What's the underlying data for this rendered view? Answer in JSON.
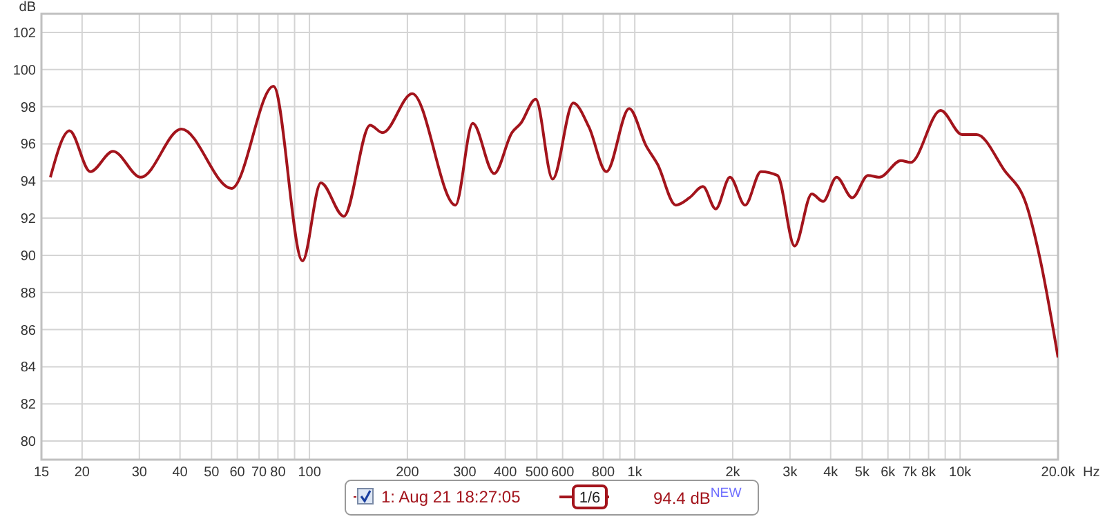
{
  "chart_data": {
    "type": "line",
    "xlabel": "Hz",
    "ylabel": "dB",
    "x": [
      15.98,
      18.3,
      21.2,
      24.9,
      30.3,
      40.4,
      57.6,
      77.5,
      95.2,
      108.4,
      127.5,
      153.6,
      167.8,
      207,
      281,
      317.6,
      369.5,
      419,
      446,
      496,
      559,
      647,
      723,
      818,
      961,
      1083,
      1175,
      1337,
      1473,
      1620,
      1773,
      1962,
      2183,
      2443,
      2744,
      3100,
      3500,
      3792,
      4171,
      4661,
      5211,
      5650,
      6573,
      7044,
      8713,
      10141,
      11240,
      13649,
      15998,
      17567,
      20000
    ],
    "series": [
      {
        "name": "1: Aug 21 18:27:05",
        "color": "#a3141c",
        "values": [
          94.2,
          96.7,
          94.5,
          95.6,
          94.2,
          96.8,
          93.6,
          99.1,
          89.7,
          93.9,
          92.1,
          97.0,
          96.6,
          98.7,
          92.7,
          97.1,
          94.4,
          96.6,
          97.1,
          98.4,
          94.1,
          98.2,
          96.9,
          94.5,
          97.9,
          95.9,
          94.9,
          92.7,
          93.1,
          93.7,
          92.5,
          94.2,
          92.7,
          94.5,
          94.3,
          90.5,
          93.3,
          92.9,
          94.2,
          93.1,
          94.3,
          94.2,
          95.1,
          95.0,
          97.8,
          96.5,
          96.5,
          94.6,
          92.7,
          89.9,
          84.5
        ]
      }
    ],
    "xlim": [
      15,
      20000
    ],
    "ylim": [
      79,
      103
    ],
    "xticks": [
      15,
      20,
      30,
      40,
      50,
      60,
      70,
      80,
      {
        "value": 90,
        "label": null
      },
      100,
      200,
      300,
      400,
      500,
      600,
      800,
      {
        "value": 900,
        "label": null
      },
      {
        "value": 1000,
        "label": "1k"
      },
      {
        "value": 2000,
        "label": "2k"
      },
      {
        "value": 3000,
        "label": "3k"
      },
      {
        "value": 4000,
        "label": "4k"
      },
      {
        "value": 5000,
        "label": "5k"
      },
      {
        "value": 6000,
        "label": "6k"
      },
      {
        "value": 7000,
        "label": "7k"
      },
      {
        "value": 8000,
        "label": "8k"
      },
      {
        "value": 9000,
        "label": null
      },
      {
        "value": 10000,
        "label": "10k"
      },
      {
        "value": 20000,
        "label": "20.0k"
      }
    ],
    "yticks": [
      80,
      82,
      84,
      86,
      88,
      90,
      92,
      94,
      96,
      98,
      100,
      102
    ],
    "log": "x",
    "grid": true,
    "legend": "bottom",
    "marker": "none",
    "line_style": "solid",
    "annotations": [
      "1/6",
      "94.4 dB$^{NEW}$"
    ]
  }
}
